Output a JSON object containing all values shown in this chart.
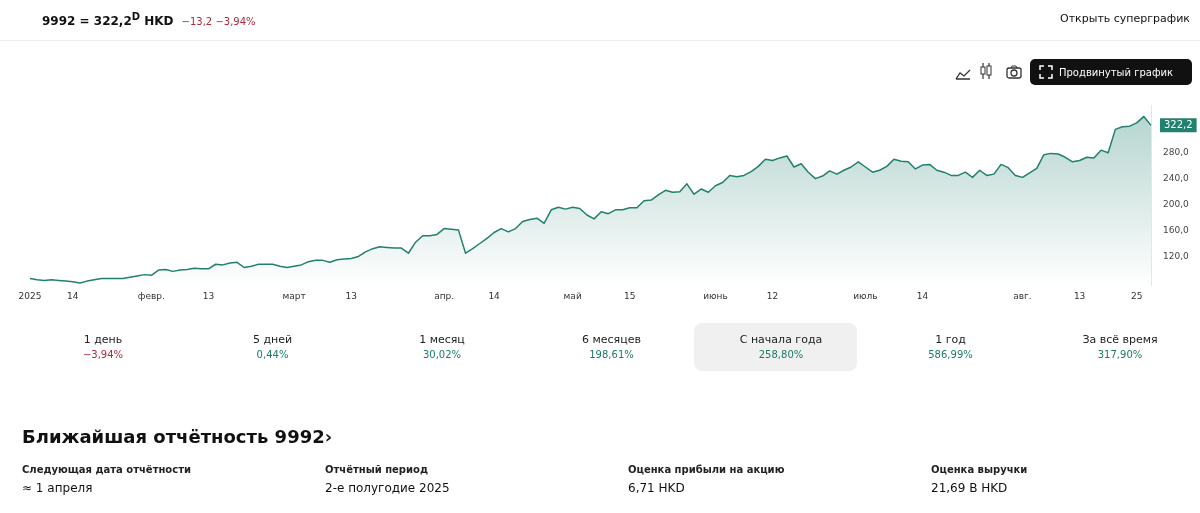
{
  "chart_data": {
    "type": "area",
    "title": "9992 = 322,2$^{D}$ HKD",
    "subtitle": "−13,2 −3,94%",
    "categories": [
      "2025",
      null,
      null,
      null,
      null,
      null,
      "14",
      null,
      null,
      null,
      null,
      null,
      null,
      null,
      null,
      null,
      null,
      "февр.",
      null,
      null,
      null,
      null,
      null,
      null,
      null,
      "13",
      null,
      null,
      null,
      null,
      null,
      null,
      null,
      null,
      null,
      null,
      null,
      "март",
      null,
      null,
      null,
      null,
      null,
      null,
      null,
      "13",
      null,
      null,
      null,
      null,
      null,
      null,
      null,
      null,
      null,
      null,
      null,
      null,
      "апр.",
      null,
      null,
      null,
      null,
      null,
      null,
      "14",
      null,
      null,
      null,
      null,
      null,
      null,
      null,
      null,
      null,
      null,
      "май",
      null,
      null,
      null,
      null,
      null,
      null,
      null,
      "15",
      null,
      null,
      null,
      null,
      null,
      null,
      null,
      null,
      null,
      null,
      null,
      "июнь",
      null,
      null,
      null,
      null,
      null,
      null,
      null,
      "12",
      null,
      null,
      null,
      null,
      null,
      null,
      null,
      null,
      null,
      null,
      null,
      null,
      "июль",
      null,
      null,
      null,
      null,
      null,
      null,
      null,
      "14",
      null,
      null,
      null,
      null,
      null,
      null,
      null,
      null,
      null,
      null,
      null,
      null,
      null,
      "авг.",
      null,
      null,
      null,
      null,
      null,
      null,
      null,
      "13",
      null,
      null,
      null,
      null,
      null,
      null,
      null,
      "25",
      null,
      null
    ],
    "series": [
      {
        "color": "#22806e",
        "values": [
          86,
          84,
          83,
          84,
          83,
          82,
          81,
          79,
          82,
          84,
          86,
          86,
          86,
          86,
          88,
          90,
          92,
          91,
          99,
          100,
          97,
          99,
          100,
          102,
          101,
          101,
          108,
          107,
          110,
          111,
          103,
          105,
          108,
          108,
          108,
          105,
          103,
          105,
          107,
          112,
          114,
          114,
          111,
          115,
          116,
          117,
          120,
          127,
          132,
          135,
          134,
          133,
          133,
          125,
          142,
          152,
          152,
          154,
          163,
          162,
          161,
          125,
          132,
          140,
          148,
          157,
          163,
          158,
          163,
          174,
          177,
          179,
          171,
          192,
          196,
          193,
          196,
          194,
          184,
          178,
          189,
          186,
          192,
          192,
          195,
          195,
          206,
          207,
          215,
          222,
          219,
          220,
          232,
          216,
          224,
          219,
          229,
          234,
          245,
          243,
          245,
          251,
          259,
          270,
          268,
          272,
          275,
          258,
          263,
          250,
          240,
          244,
          252,
          247,
          253,
          258,
          266,
          258,
          250,
          253,
          259,
          270,
          267,
          266,
          255,
          261,
          262,
          253,
          250,
          245,
          245,
          250,
          242,
          253,
          245,
          247,
          262,
          257,
          245,
          242,
          249,
          256,
          277,
          279,
          278,
          273,
          266,
          268,
          273,
          272,
          284,
          280,
          316,
          320,
          321,
          326,
          336,
          322.2
        ]
      }
    ],
    "ylim": [
      76,
      353
    ],
    "yticks": [
      {
        "value": 120,
        "label": "120,0"
      },
      {
        "value": 160,
        "label": "160,0"
      },
      {
        "value": 200,
        "label": "200,0"
      },
      {
        "value": 240,
        "label": "240,0"
      },
      {
        "value": 280,
        "label": "280,0"
      }
    ],
    "grid": false,
    "legend": false,
    "annotations": [
      "322,2",
      "Открыть суперграфик",
      "Продвинутый график",
      "1 день",
      "−3,94%",
      "5 дней",
      "0,44%",
      "1 месяц",
      "30,02%",
      "6 месяцев",
      "198,61%",
      "С начала года",
      "258,80%",
      "1 год",
      "586,99%",
      "За всё время",
      "317,90%",
      "Ближайшая отчётность 9992›",
      "Следующая дата отчётности",
      "≈ 1 апреля",
      "Отчётный период",
      "2-е полугодие 2025",
      "Оценка прибыли на акцию",
      "6,71 HKD",
      "Оценка выручки",
      "21,69 B HKD"
    ]
  }
}
